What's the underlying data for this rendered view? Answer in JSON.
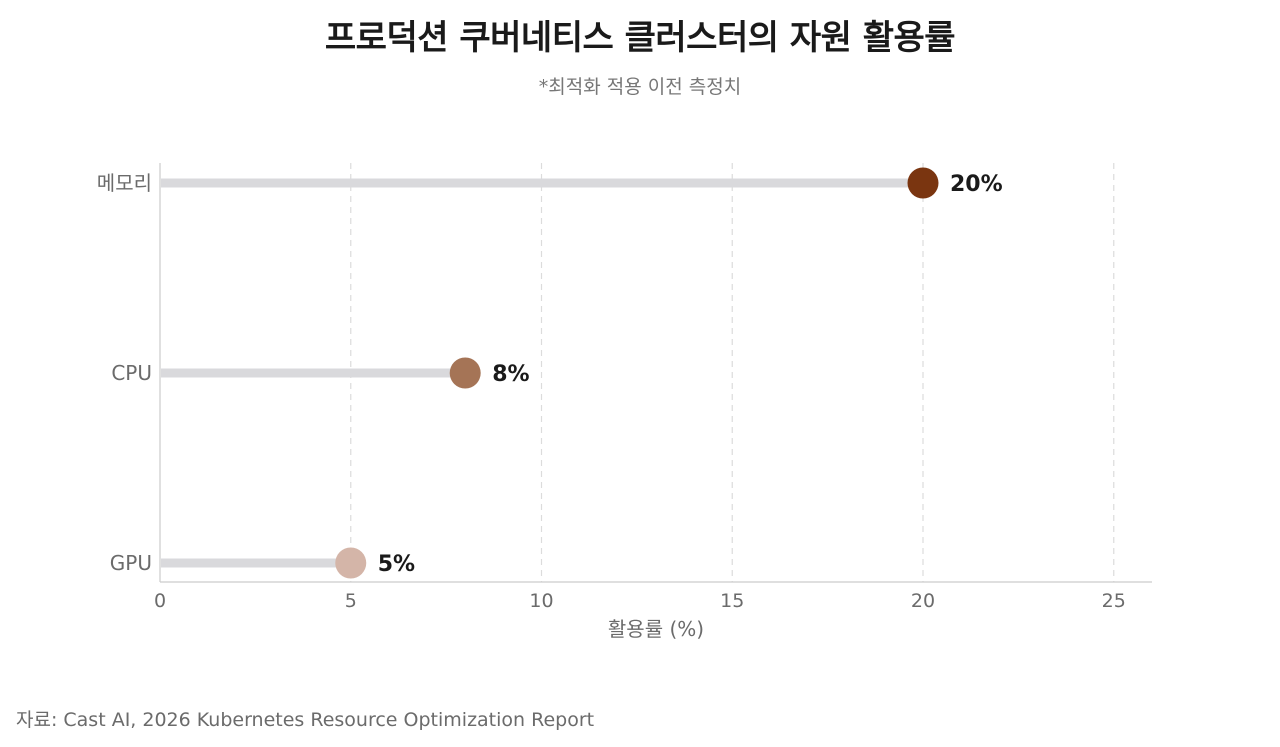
{
  "title": "프로덕션 쿠버네티스 클러스터의 자원 활용률",
  "subtitle": "*최적화 적용 이전 측정치",
  "source": "자료: Cast AI, 2026 Kubernetes Resource Optimization Report",
  "chart_data": {
    "type": "lollipop",
    "orientation": "horizontal",
    "title": "프로덕션 쿠버네티스 클러스터의 자원 활용률",
    "subtitle": "*최적화 적용 이전 측정치",
    "xlabel": "활용률 (%)",
    "ylabel": "",
    "xlim": [
      0,
      26
    ],
    "xticks": [
      0,
      5,
      10,
      15,
      20,
      25
    ],
    "grid": "vertical-dashed",
    "categories": [
      "메모리",
      "CPU",
      "GPU"
    ],
    "values": [
      20,
      8,
      5
    ],
    "value_labels": [
      "20%",
      "8%",
      "5%"
    ],
    "colors": [
      "#7a3510",
      "#a57456",
      "#d4b5a8"
    ],
    "stem_color": "#d9d9dc",
    "grid_color": "#dcdcdc",
    "axis_color": "#cccccc",
    "label_color": "#6b6b6b",
    "value_label_color": "#1a1a1a"
  }
}
